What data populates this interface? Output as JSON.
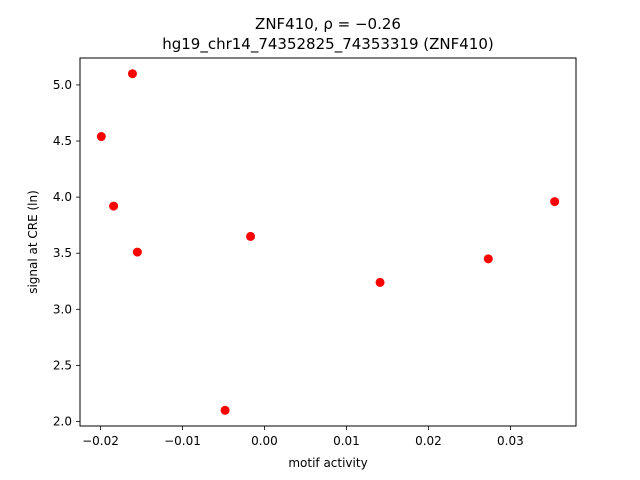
{
  "chart_data": {
    "type": "scatter",
    "title_line1": "ZNF410, ρ = −0.26",
    "title_line2": "hg19_chr14_74352825_74353319 (ZNF410)",
    "xlabel": "motif activity",
    "ylabel": "signal at CRE (ln)",
    "xlim": [
      -0.0225,
      0.038
    ],
    "ylim": [
      1.96,
      5.24
    ],
    "x_ticks": [
      -0.02,
      -0.01,
      0.0,
      0.01,
      0.02,
      0.03
    ],
    "x_tick_labels": [
      "−0.02",
      "−0.01",
      "0.00",
      "0.01",
      "0.02",
      "0.03"
    ],
    "y_ticks": [
      2.0,
      2.5,
      3.0,
      3.5,
      4.0,
      4.5,
      5.0
    ],
    "y_tick_labels": [
      "2.0",
      "2.5",
      "3.0",
      "3.5",
      "4.0",
      "4.5",
      "5.0"
    ],
    "grid": false,
    "marker_color": "#ff0000",
    "points": [
      {
        "x": -0.0199,
        "y": 4.54
      },
      {
        "x": -0.0184,
        "y": 3.92
      },
      {
        "x": -0.0161,
        "y": 5.1
      },
      {
        "x": -0.0155,
        "y": 3.51
      },
      {
        "x": -0.0048,
        "y": 2.1
      },
      {
        "x": -0.0017,
        "y": 3.65
      },
      {
        "x": 0.0141,
        "y": 3.24
      },
      {
        "x": 0.0273,
        "y": 3.45
      },
      {
        "x": 0.0354,
        "y": 3.96
      }
    ]
  }
}
